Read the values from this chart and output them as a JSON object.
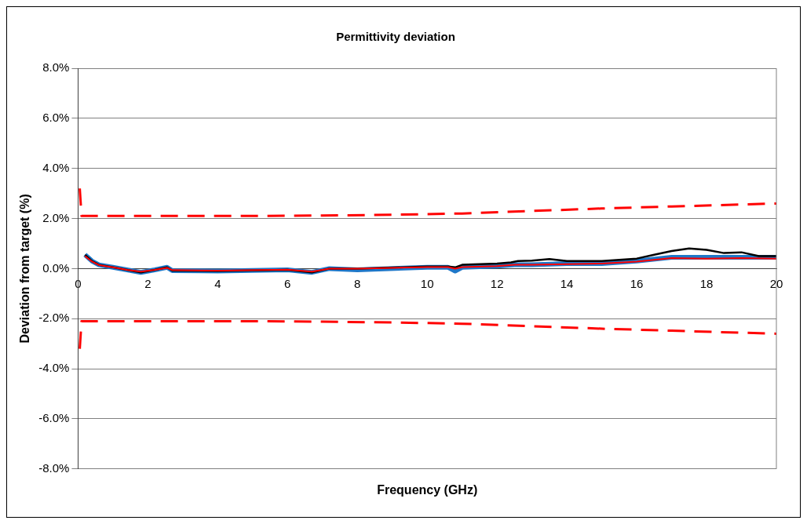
{
  "chart_data": {
    "type": "line",
    "title": "Permittivity deviation",
    "xlabel": "Frequency (GHz)",
    "ylabel": "Deviation from target (%)",
    "xlim": [
      0,
      20
    ],
    "xticks": [
      0,
      2,
      4,
      6,
      8,
      10,
      12,
      14,
      16,
      18,
      20
    ],
    "ylim": [
      -8,
      8
    ],
    "yticks": [
      {
        "value": -8,
        "label": "-8.0%"
      },
      {
        "value": -6,
        "label": "-6.0%"
      },
      {
        "value": -4,
        "label": "-4.0%"
      },
      {
        "value": -2,
        "label": "-2.0%"
      },
      {
        "value": 0,
        "label": "0.0%"
      },
      {
        "value": 2,
        "label": "2.0%"
      },
      {
        "value": 4,
        "label": "4.0%"
      },
      {
        "value": 6,
        "label": "6.0%"
      },
      {
        "value": 8,
        "label": "8.0%"
      }
    ],
    "grid": "y",
    "legend": false,
    "marker": "none",
    "series": [
      {
        "color": "#ff0000",
        "line_style": "dashed",
        "x": [
          0.05,
          0.1,
          1,
          3,
          5,
          7,
          9,
          11,
          13,
          15,
          17,
          19,
          20
        ],
        "values": [
          3.2,
          2.1,
          2.1,
          2.1,
          2.1,
          2.12,
          2.15,
          2.2,
          2.3,
          2.4,
          2.48,
          2.56,
          2.6
        ]
      },
      {
        "color": "#ff0000",
        "line_style": "dashed",
        "x": [
          0.05,
          0.1,
          1,
          3,
          5,
          7,
          9,
          11,
          13,
          15,
          17,
          19,
          20
        ],
        "values": [
          -3.2,
          -2.1,
          -2.1,
          -2.1,
          -2.1,
          -2.12,
          -2.15,
          -2.2,
          -2.3,
          -2.4,
          -2.48,
          -2.56,
          -2.6
        ]
      },
      {
        "color": "#000000",
        "line_style": "solid",
        "x": [
          0.2,
          0.4,
          0.6,
          1,
          1.4,
          1.8,
          2.2,
          2.55,
          2.7,
          4,
          6,
          6.7,
          7.2,
          8,
          10,
          10.6,
          10.8,
          11,
          12,
          12.4,
          12.6,
          13,
          13.5,
          14,
          15,
          16,
          16.5,
          17,
          17.5,
          18,
          18.5,
          19,
          19.5,
          20
        ],
        "values": [
          0.55,
          0.3,
          0.15,
          0.05,
          -0.05,
          -0.15,
          -0.05,
          0.05,
          -0.08,
          -0.1,
          -0.05,
          -0.15,
          0.0,
          0.0,
          0.08,
          0.08,
          0.05,
          0.15,
          0.2,
          0.25,
          0.3,
          0.32,
          0.38,
          0.3,
          0.3,
          0.4,
          0.55,
          0.7,
          0.8,
          0.75,
          0.62,
          0.65,
          0.5,
          0.5
        ]
      },
      {
        "color": "#ff0000",
        "line_style": "solid",
        "x": [
          0.2,
          0.4,
          0.6,
          1,
          1.4,
          1.8,
          2.2,
          2.55,
          2.7,
          4,
          6,
          6.7,
          7.2,
          8,
          10,
          10.6,
          10.8,
          11,
          12,
          12.5,
          13,
          14,
          15,
          16,
          17,
          18,
          19,
          20
        ],
        "values": [
          0.5,
          0.28,
          0.14,
          0.05,
          -0.05,
          -0.12,
          -0.05,
          0.03,
          -0.06,
          -0.08,
          -0.04,
          -0.12,
          0.0,
          0.0,
          0.06,
          0.06,
          0.0,
          0.06,
          0.1,
          0.15,
          0.15,
          0.18,
          0.2,
          0.28,
          0.42,
          0.4,
          0.42,
          0.4
        ]
      },
      {
        "color": "#1f77c8",
        "line_style": "solid",
        "x": [
          0.2,
          0.4,
          0.6,
          1,
          1.4,
          1.8,
          2.2,
          2.55,
          2.7,
          4,
          6,
          6.7,
          7.2,
          8,
          10,
          10.6,
          10.8,
          11,
          12,
          12.5,
          13,
          14,
          15,
          16,
          17,
          18,
          19,
          20
        ],
        "values": [
          0.55,
          0.3,
          0.15,
          0.05,
          -0.05,
          -0.15,
          -0.05,
          0.05,
          -0.08,
          -0.1,
          -0.05,
          -0.15,
          0.0,
          -0.05,
          0.05,
          0.05,
          -0.1,
          0.05,
          0.1,
          0.15,
          0.15,
          0.2,
          0.2,
          0.3,
          0.45,
          0.45,
          0.45,
          0.45
        ]
      }
    ]
  }
}
